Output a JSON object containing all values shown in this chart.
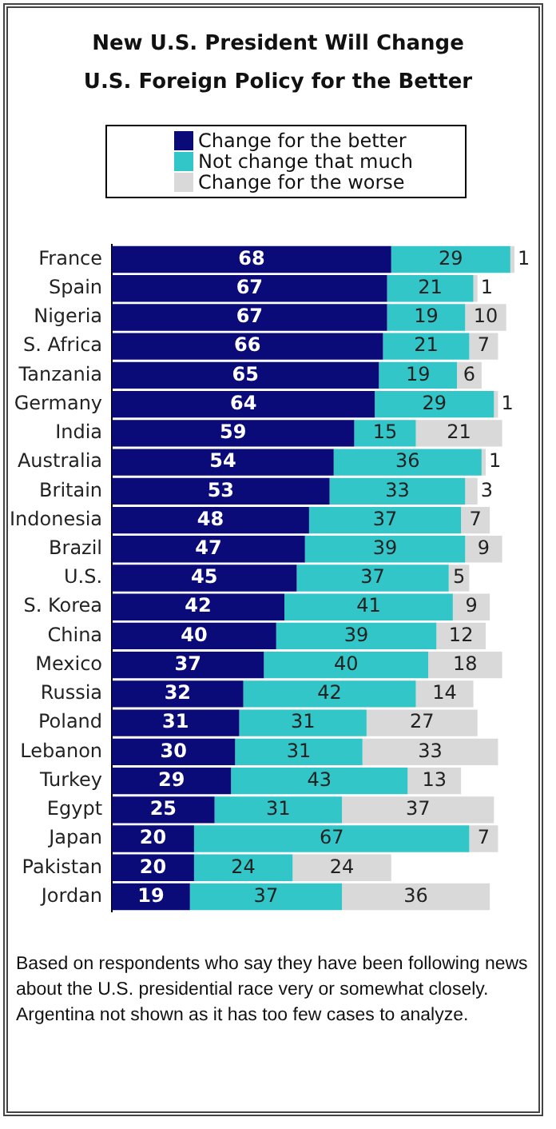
{
  "chart_data": {
    "type": "bar",
    "orientation": "horizontal",
    "stacked": true,
    "data_labels": true,
    "legend": "top",
    "title": "New U.S. President Will Change U.S. Foreign Policy for the Better",
    "categories": [
      "France",
      "Spain",
      "Nigeria",
      "S. Africa",
      "Tanzania",
      "Germany",
      "India",
      "Australia",
      "Britain",
      "Indonesia",
      "Brazil",
      "U.S.",
      "S. Korea",
      "China",
      "Mexico",
      "Russia",
      "Poland",
      "Lebanon",
      "Turkey",
      "Egypt",
      "Japan",
      "Pakistan",
      "Jordan"
    ],
    "series": [
      {
        "name": "Change for the better",
        "color": "#0a0a78",
        "values": [
          68,
          67,
          67,
          66,
          65,
          64,
          59,
          54,
          53,
          48,
          47,
          45,
          42,
          40,
          37,
          32,
          31,
          30,
          29,
          25,
          20,
          20,
          19
        ]
      },
      {
        "name": "Not change that much",
        "color": "#33c6c8",
        "values": [
          29,
          21,
          19,
          21,
          19,
          29,
          15,
          36,
          33,
          37,
          39,
          37,
          41,
          39,
          40,
          42,
          31,
          31,
          43,
          31,
          67,
          24,
          37
        ]
      },
      {
        "name": "Change for the worse",
        "color": "#d9d9d9",
        "values": [
          1,
          1,
          10,
          7,
          6,
          1,
          21,
          1,
          3,
          7,
          9,
          5,
          9,
          12,
          18,
          14,
          27,
          33,
          13,
          37,
          7,
          24,
          36
        ]
      }
    ],
    "annotations": [
      "Based on respondents who say they have been following news about the U.S. presidential race very or somewhat closely.",
      "Argentina not shown as it has too few cases to analyze."
    ]
  }
}
